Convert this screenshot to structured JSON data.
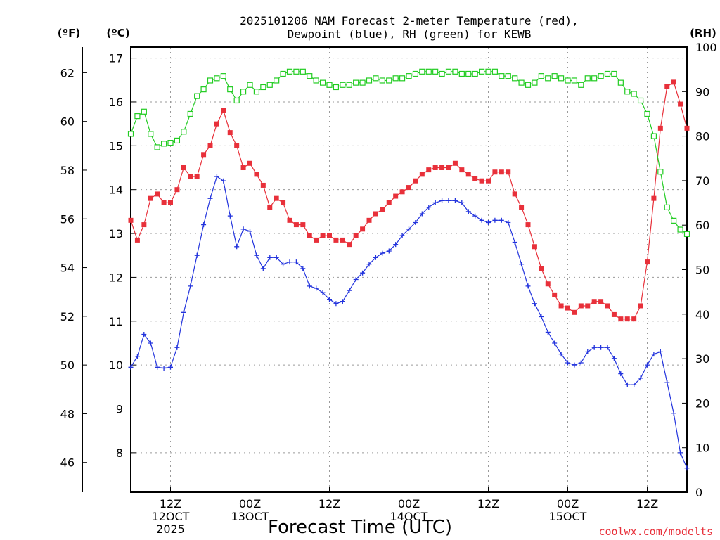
{
  "chart_data": {
    "type": "line",
    "title_line1": "2025101206 NAM Forecast 2-meter Temperature (red),",
    "title_line2": "Dewpoint (blue), RH (green) for KEWB",
    "xlabel": "Forecast Time (UTC)",
    "credit": "coolwx.com/modelts",
    "left_axis_f": {
      "unit": "(ºF)",
      "ticks": [
        "46",
        "48",
        "50",
        "52",
        "54",
        "56",
        "58",
        "60",
        "62"
      ]
    },
    "left_axis_c": {
      "unit": "(ºC)",
      "range": [
        7.1,
        17.25
      ],
      "ticks": [
        "8",
        "9",
        "10",
        "11",
        "12",
        "13",
        "14",
        "15",
        "16",
        "17"
      ]
    },
    "right_axis_rh": {
      "unit": "(RH)",
      "range": [
        0,
        100
      ],
      "ticks": [
        "0",
        "10",
        "20",
        "30",
        "40",
        "50",
        "60",
        "70",
        "80",
        "90",
        "100"
      ]
    },
    "x_ticks": [
      {
        "h": 6,
        "lines": [
          "12Z",
          "12OCT",
          "2025"
        ]
      },
      {
        "h": 18,
        "lines": [
          "00Z",
          "13OCT"
        ]
      },
      {
        "h": 30,
        "lines": [
          "12Z"
        ]
      },
      {
        "h": 42,
        "lines": [
          "00Z",
          "14OCT"
        ]
      },
      {
        "h": 54,
        "lines": [
          "12Z"
        ]
      },
      {
        "h": 66,
        "lines": [
          "00Z",
          "15OCT"
        ]
      },
      {
        "h": 78,
        "lines": [
          "12Z"
        ]
      }
    ],
    "x": "forecast hour offsets 0 to 84 from 2025101206, one value per hour",
    "series": [
      {
        "name": "Temperature (red)",
        "color": "#e8303a",
        "axis": "C",
        "marker": "filled-square",
        "values": [
          13.3,
          12.85,
          13.2,
          13.8,
          13.9,
          13.7,
          13.7,
          14.0,
          14.5,
          14.3,
          14.3,
          14.8,
          15.0,
          15.5,
          15.8,
          15.3,
          15.0,
          14.5,
          14.6,
          14.35,
          14.1,
          13.6,
          13.8,
          13.7,
          13.3,
          13.2,
          13.2,
          12.95,
          12.85,
          12.95,
          12.95,
          12.85,
          12.85,
          12.75,
          12.95,
          13.1,
          13.3,
          13.45,
          13.55,
          13.7,
          13.85,
          13.95,
          14.05,
          14.2,
          14.35,
          14.45,
          14.5,
          14.5,
          14.5,
          14.6,
          14.45,
          14.35,
          14.25,
          14.2,
          14.2,
          14.4,
          14.4,
          14.4,
          13.9,
          13.6,
          13.2,
          12.7,
          12.2,
          11.85,
          11.6,
          11.35,
          11.3,
          11.2,
          11.35,
          11.35,
          11.45,
          11.45,
          11.35,
          11.15,
          11.05,
          11.05,
          11.05,
          11.35,
          12.35,
          13.8,
          15.4,
          16.35,
          16.45,
          15.95,
          15.4
        ]
      },
      {
        "name": "Dewpoint (blue)",
        "color": "#2233dd",
        "axis": "C",
        "marker": "plus",
        "values": [
          9.95,
          10.2,
          10.7,
          10.5,
          9.95,
          9.93,
          9.95,
          10.4,
          11.2,
          11.8,
          12.5,
          13.2,
          13.8,
          14.3,
          14.2,
          13.4,
          12.7,
          13.1,
          13.05,
          12.5,
          12.2,
          12.45,
          12.45,
          12.3,
          12.35,
          12.35,
          12.2,
          11.8,
          11.75,
          11.65,
          11.5,
          11.4,
          11.45,
          11.7,
          11.95,
          12.1,
          12.3,
          12.45,
          12.55,
          12.6,
          12.75,
          12.95,
          13.1,
          13.25,
          13.45,
          13.6,
          13.7,
          13.75,
          13.75,
          13.75,
          13.7,
          13.5,
          13.4,
          13.3,
          13.25,
          13.3,
          13.3,
          13.25,
          12.8,
          12.3,
          11.8,
          11.4,
          11.1,
          10.75,
          10.5,
          10.25,
          10.05,
          10.0,
          10.05,
          10.3,
          10.4,
          10.4,
          10.4,
          10.15,
          9.8,
          9.55,
          9.55,
          9.7,
          10.0,
          10.25,
          10.3,
          9.6,
          8.9,
          8.0,
          7.65
        ]
      },
      {
        "name": "RH (green)",
        "color": "#22cc22",
        "axis": "RH",
        "marker": "open-square",
        "values": [
          80.5,
          84.5,
          85.5,
          80.5,
          77.5,
          78.3,
          78.5,
          79,
          81,
          85,
          89,
          90.5,
          92.5,
          93,
          93.5,
          90.5,
          88,
          90,
          91.5,
          90,
          91,
          91.5,
          92.5,
          94,
          94.5,
          94.5,
          94.5,
          93.5,
          92.5,
          92,
          91.5,
          91,
          91.5,
          91.5,
          92,
          92,
          92.5,
          93,
          92.5,
          92.5,
          93,
          93,
          93.5,
          94,
          94.5,
          94.5,
          94.5,
          94,
          94.5,
          94.5,
          94,
          94,
          94,
          94.5,
          94.5,
          94.5,
          93.5,
          93.5,
          93,
          92,
          91.5,
          92,
          93.5,
          93,
          93.5,
          93,
          92.5,
          92.5,
          91.5,
          93,
          93,
          93.5,
          94,
          94,
          92,
          90,
          89.5,
          88,
          85,
          80,
          72,
          64,
          61,
          59,
          58
        ]
      }
    ]
  }
}
